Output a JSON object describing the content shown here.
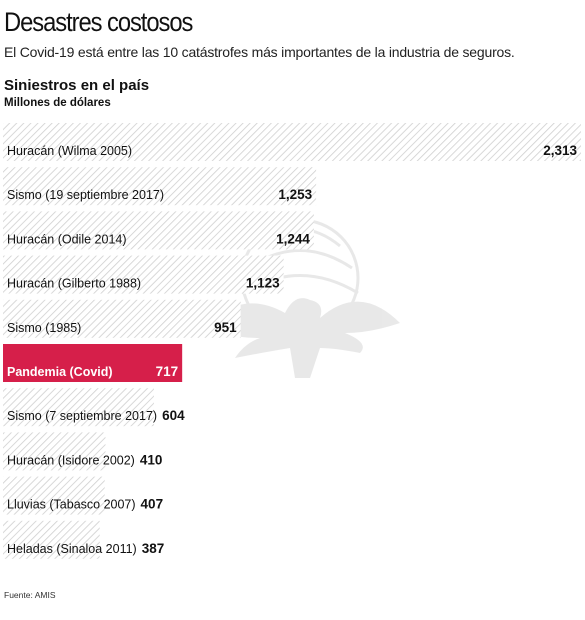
{
  "header": {
    "title": "Desastres costosos",
    "subtitle": "El Covid-19 está entre las 10 catástrofes más importantes de la industria de seguros.",
    "section_title": "Siniestros en el país",
    "units": "Millones de dólares"
  },
  "footer": {
    "source": "Fuente: AMIS"
  },
  "colors": {
    "highlight": "#d61f4a",
    "hatch": "#c8c8c8",
    "text": "#111111"
  },
  "chart_data": {
    "type": "bar",
    "orientation": "horizontal",
    "categories": [
      "Huracán (Wilma 2005)",
      "Sismo (19 septiembre 2017)",
      "Huracán (Odile 2014)",
      "Huracán (Gilberto 1988)",
      "Sismo (1985)",
      "Pandemia (Covid)",
      "Sismo (7 septiembre 2017)",
      "Huracán (Isidore 2002)",
      "Lluvias (Tabasco 2007)",
      "Heladas (Sinaloa 2011)"
    ],
    "values": [
      2313,
      1253,
      1244,
      1123,
      951,
      717,
      604,
      410,
      407,
      387
    ],
    "value_labels": [
      "2,313",
      "1,253",
      "1,244",
      "1,123",
      "951",
      "717",
      "604",
      "410",
      "407",
      "387"
    ],
    "highlight_index": 5,
    "xlim": [
      0,
      2313
    ],
    "grid": false,
    "legend": "none"
  }
}
